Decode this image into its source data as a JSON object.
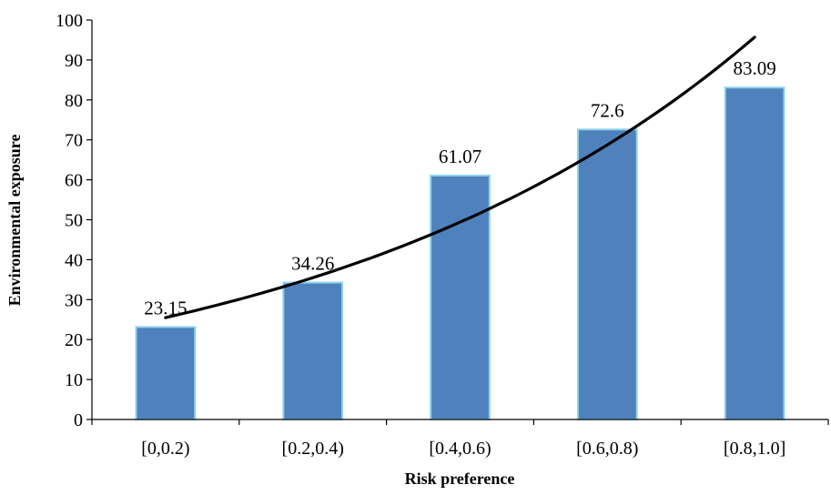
{
  "chart_data": {
    "type": "bar",
    "categories": [
      "[0,0.2)",
      "[0.2,0.4)",
      "[0.4,0.6)",
      "[0.6,0.8)",
      "[0.8,1.0]"
    ],
    "values": [
      23.15,
      34.26,
      61.07,
      72.6,
      83.09
    ],
    "data_labels": [
      "23.15",
      "34.26",
      "61.07",
      "72.6",
      "83.09"
    ],
    "xlabel": "Risk preference",
    "ylabel": "Environmental exposure",
    "ylim": [
      0,
      100
    ],
    "yticks": [
      0,
      10,
      20,
      30,
      40,
      50,
      60,
      70,
      80,
      90,
      100
    ],
    "grid": false,
    "trendline": {
      "type": "exponential",
      "values": [
        25.5,
        34.9,
        47.9,
        65.5,
        95.7
      ]
    },
    "colors": {
      "bar_fill": "#4f81bd",
      "bar_edge": "#8fd3ea",
      "trendline": "#000000"
    }
  }
}
